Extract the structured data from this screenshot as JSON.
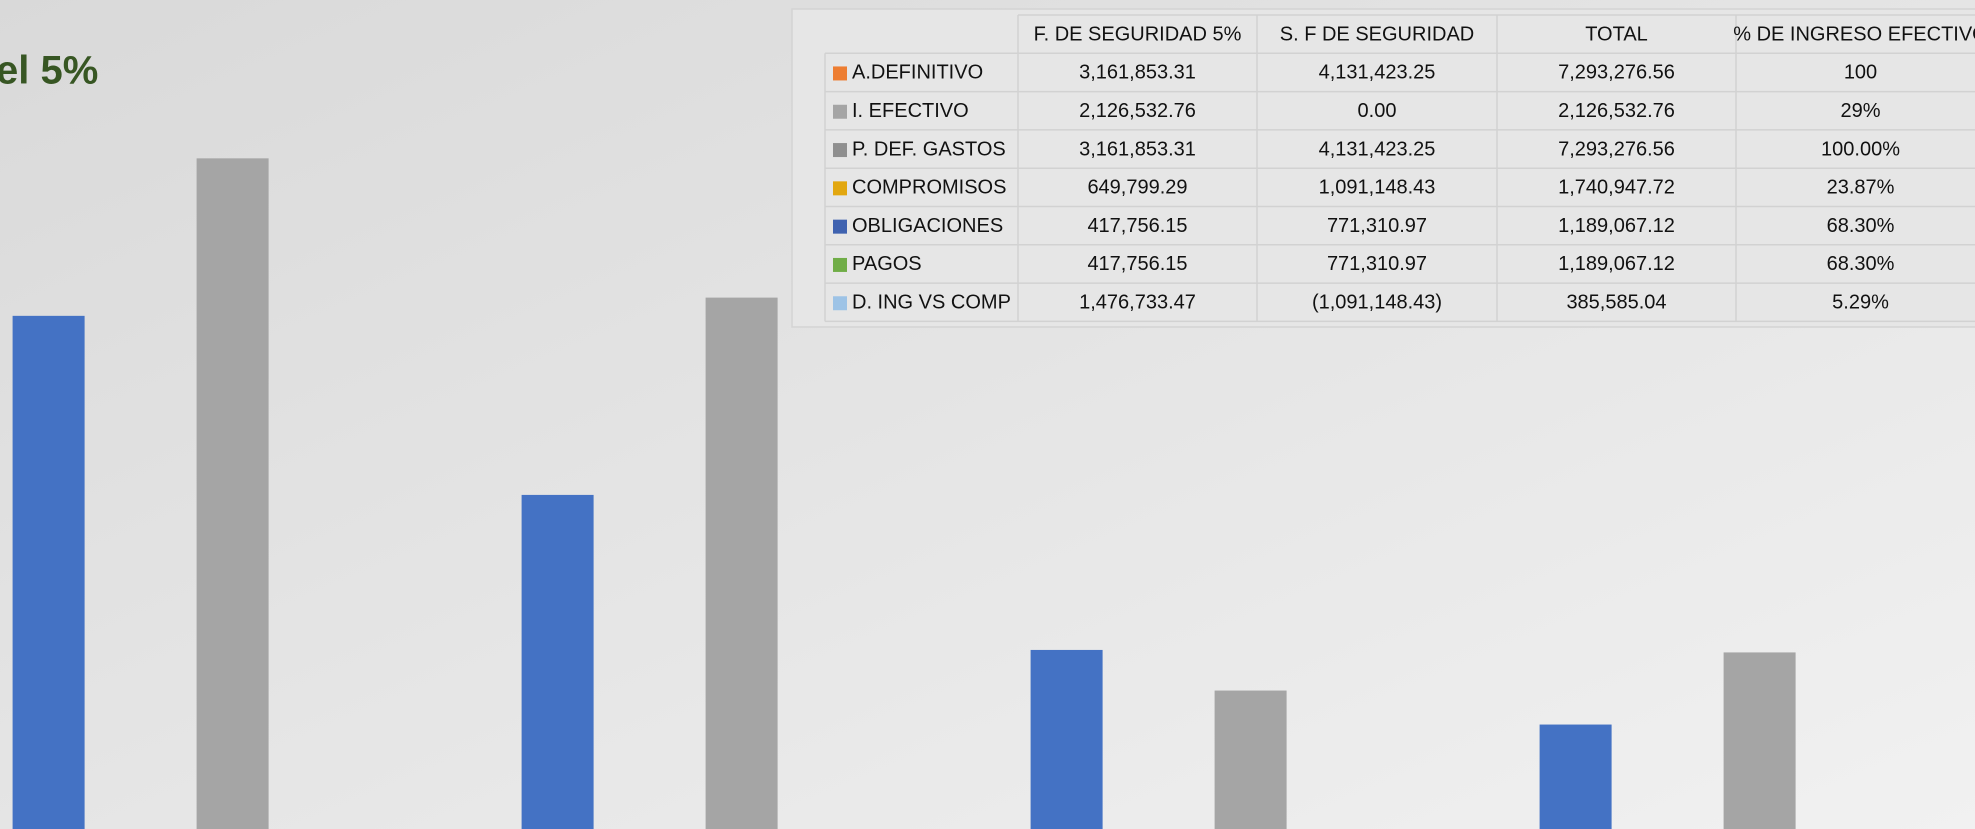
{
  "chart_data": {
    "type": "bar",
    "title": "el 5%",
    "series": [
      {
        "color": "#4472c4",
        "values": [
          61.9,
          40.3,
          21.6,
          12.6
        ]
      },
      {
        "color": "#a5a5a5",
        "values": [
          80.9,
          64.1,
          16.7,
          21.3
        ]
      }
    ],
    "ylim": [
      0,
      100
    ],
    "data_table": {
      "columns": [
        "F. DE SEGURIDAD 5%",
        "S. F DE SEGURIDAD",
        "TOTAL",
        "% DE INGRESO EFECTIVO"
      ],
      "rows": [
        {
          "label": "A.DEFINITIVO",
          "color": "#ed7d31",
          "cells": [
            "3,161,853.31",
            "4,131,423.25",
            "7,293,276.56",
            "100"
          ]
        },
        {
          "label": "I. EFECTIVO",
          "color": "#a5a5a5",
          "cells": [
            "2,126,532.76",
            "0.00",
            "2,126,532.76",
            "29%"
          ]
        },
        {
          "label": "P. DEF. GASTOS",
          "color": "#8f8f8f",
          "cells": [
            "3,161,853.31",
            "4,131,423.25",
            "7,293,276.56",
            "100.00%"
          ]
        },
        {
          "label": "COMPROMISOS",
          "color": "#e2a70f",
          "cells": [
            "649,799.29",
            "1,091,148.43",
            "1,740,947.72",
            "23.87%"
          ]
        },
        {
          "label": "OBLIGACIONES",
          "color": "#3f62b0",
          "cells": [
            "417,756.15",
            "771,310.97",
            "1,189,067.12",
            "68.30%"
          ]
        },
        {
          "label": "PAGOS",
          "color": "#70ad47",
          "cells": [
            "417,756.15",
            "771,310.97",
            "1,189,067.12",
            "68.30%"
          ]
        },
        {
          "label": "D. ING VS COMP",
          "color": "#9dc3e6",
          "cells": [
            "1,476,733.47",
            "(1,091,148.43)",
            "385,585.04",
            "5.29%"
          ]
        }
      ]
    }
  }
}
